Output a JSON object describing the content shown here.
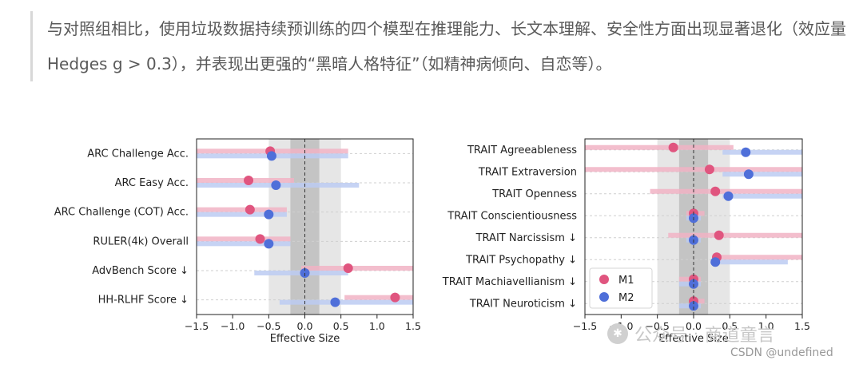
{
  "article": {
    "paragraph": "与对照组相比，使用垃圾数据持续预训练的四个模型在推理能力、长文本理解、安全性方面出现显著退化（效应量 Hedges g > 0.3），并表现出更强的“黑暗人格特征”（如精神病倾向、自恋等）。"
  },
  "watermark": {
    "platform": "公众号",
    "sep": "·",
    "author": "商道童言",
    "credit": "CSDN @undefined"
  },
  "colors": {
    "M1": "#e0557f",
    "M2": "#4f6fd9",
    "M1_bar": "#f1b3c4",
    "M2_bar": "#bccbf2",
    "band_outer": "#e6e6e6",
    "band_inner": "#c4c4c4"
  },
  "chart_data": [
    {
      "type": "scatter",
      "xlabel": "Effective Size",
      "xlim": [
        -1.5,
        1.5
      ],
      "xticks": [
        "−1.5",
        "−1.0",
        "−0.5",
        "0.0",
        "0.5",
        "1.0",
        "1.5"
      ],
      "shaded_bands": [
        [
          -0.5,
          0.5
        ],
        [
          -0.2,
          0.2
        ]
      ],
      "categories": [
        "ARC Challenge Acc.",
        "ARC Easy Acc.",
        "ARC Challenge (COT) Acc.",
        "RULER(4k) Overall",
        "AdvBench Score ↓",
        "HH-RLHF Score ↓"
      ],
      "series": [
        {
          "name": "M1",
          "values": [
            -0.48,
            -0.78,
            -0.76,
            -0.62,
            0.6,
            1.25
          ],
          "ci_low": [
            -1.5,
            -1.5,
            -1.5,
            -1.5,
            -0.05,
            0.55
          ],
          "ci_high": [
            0.6,
            -0.15,
            -0.25,
            -0.2,
            1.5,
            1.5
          ]
        },
        {
          "name": "M2",
          "values": [
            -0.46,
            -0.4,
            -0.5,
            -0.5,
            0.0,
            0.42
          ],
          "ci_low": [
            -1.5,
            -1.5,
            -1.5,
            -1.5,
            -0.7,
            -0.35
          ],
          "ci_high": [
            0.6,
            0.75,
            -0.25,
            -0.2,
            0.6,
            1.5
          ]
        }
      ]
    },
    {
      "type": "scatter",
      "xlabel": "Effective Size",
      "xlim": [
        -1.5,
        1.5
      ],
      "xticks": [
        "−1.5",
        "−1.0",
        "−0.5",
        "0.0",
        "0.5",
        "1.0",
        "1.5"
      ],
      "shaded_bands": [
        [
          -0.5,
          0.5
        ],
        [
          -0.2,
          0.2
        ]
      ],
      "legend": "bottom-left",
      "categories": [
        "TRAIT Agreeableness",
        "TRAIT Extraversion",
        "TRAIT Openness",
        "TRAIT Conscientiousness",
        "TRAIT Narcissism ↓",
        "TRAIT Psychopathy ↓",
        "TRAIT Machiavellianism ↓",
        "TRAIT Neuroticism ↓"
      ],
      "series": [
        {
          "name": "M1",
          "values": [
            -0.28,
            0.22,
            0.3,
            0.0,
            0.35,
            0.32,
            0.0,
            0.0
          ],
          "ci_low": [
            -1.5,
            -1.5,
            -0.6,
            -0.1,
            -0.35,
            0.3,
            -0.2,
            0.0
          ],
          "ci_high": [
            0.55,
            1.5,
            1.5,
            0.15,
            1.5,
            1.5,
            0.1,
            0.15
          ]
        },
        {
          "name": "M2",
          "values": [
            0.72,
            0.76,
            0.48,
            0.0,
            0.0,
            0.3,
            0.0,
            0.0
          ],
          "ci_low": [
            0.4,
            0.4,
            0.4,
            -0.1,
            -0.1,
            0.3,
            -0.2,
            -0.2
          ],
          "ci_high": [
            1.5,
            1.5,
            1.5,
            0.1,
            0.1,
            1.3,
            0.1,
            0.1
          ]
        }
      ]
    }
  ]
}
